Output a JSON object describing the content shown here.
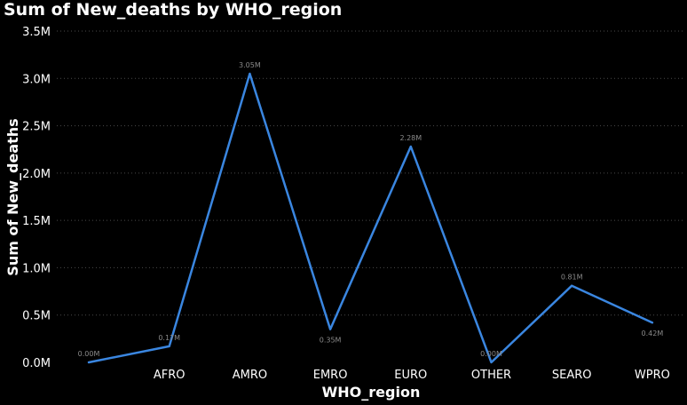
{
  "chart_data": {
    "type": "line",
    "title": "Sum of New_deaths by WHO_region",
    "xlabel": "WHO_region",
    "ylabel": "Sum of New_deaths",
    "categories": [
      "",
      "AFRO",
      "AMRO",
      "EMRO",
      "EURO",
      "OTHER",
      "SEARO",
      "WPRO"
    ],
    "values": [
      0.0,
      0.17,
      3.05,
      0.35,
      2.28,
      0.0,
      0.81,
      0.42
    ],
    "data_labels": [
      "0.00M",
      "0.17M",
      "3.05M",
      "0.35M",
      "2.28M",
      "0.00M",
      "0.81M",
      "0.42M"
    ],
    "yticks": [
      0,
      0.5,
      1.0,
      1.5,
      2.0,
      2.5,
      3.0,
      3.5
    ],
    "ytick_labels": [
      "0.0M",
      "0.5M",
      "1.0M",
      "1.5M",
      "2.0M",
      "2.5M",
      "3.0M",
      "3.5M"
    ],
    "ylim": [
      0,
      3.5
    ],
    "grid": true,
    "colors": {
      "line": "#3a86e0",
      "grid": "#4a4a4a",
      "background": "#000000"
    }
  }
}
